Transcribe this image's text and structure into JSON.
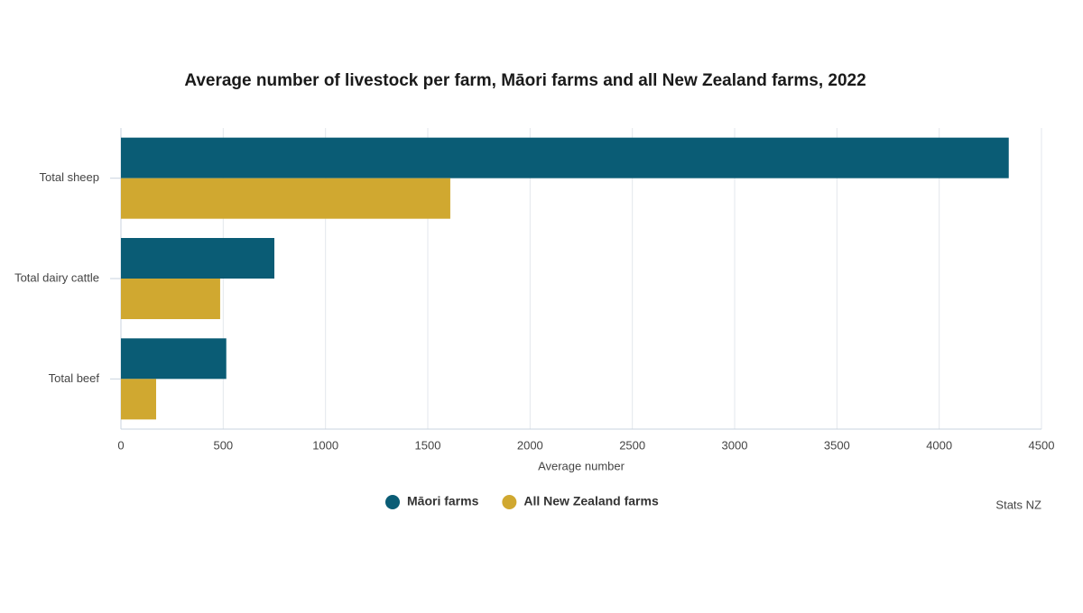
{
  "chart_data": {
    "type": "hbar",
    "title": "Average number of livestock per farm, Māori farms and all New Zealand farms, 2022",
    "categories": [
      "Total sheep",
      "Total dairy cattle",
      "Total beef"
    ],
    "series": [
      {
        "name": "Māori farms",
        "color": "#0a5c75",
        "values": [
          4340,
          750,
          515
        ]
      },
      {
        "name": "All New Zealand farms",
        "color": "#d0a830",
        "values": [
          1610,
          485,
          172
        ]
      }
    ],
    "xlabel": "Average number",
    "xlim": [
      0,
      4500
    ],
    "xticks": [
      0,
      500,
      1000,
      1500,
      2000,
      2500,
      3000,
      3500,
      4000,
      4500
    ],
    "grid": true,
    "legend": "bottom",
    "source": "Stats NZ"
  }
}
